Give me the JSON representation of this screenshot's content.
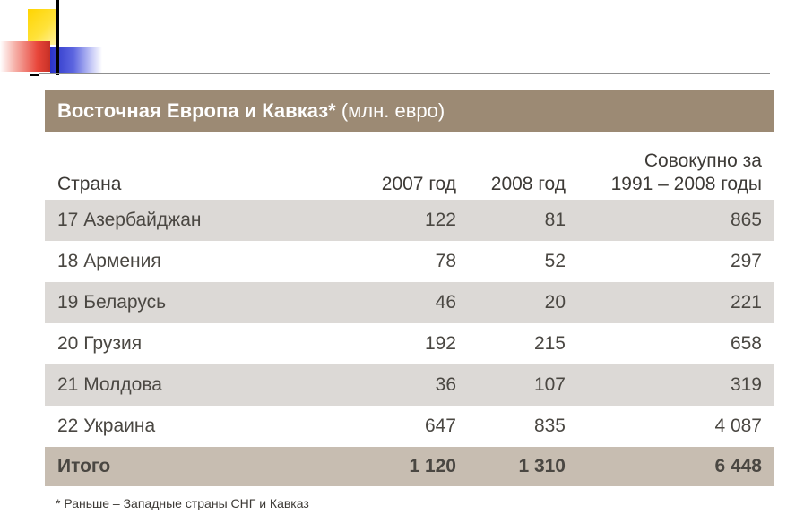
{
  "table": {
    "title": "Восточная Европа и Кавказ*",
    "unit": "(млн. евро)",
    "headers": {
      "country": "Страна",
      "y2007": "2007 год",
      "y2008": "2008 год",
      "total_line1": "Совокупно за",
      "total_line2": "1991 – 2008 годы"
    },
    "rows": [
      {
        "country": "17 Азербайджан",
        "y2007": "122",
        "y2008": "81",
        "total": "865"
      },
      {
        "country": "18 Армения",
        "y2007": "78",
        "y2008": "52",
        "total": "297"
      },
      {
        "country": "19 Беларусь",
        "y2007": "46",
        "y2008": "20",
        "total": "221"
      },
      {
        "country": "20 Грузия",
        "y2007": "192",
        "y2008": "215",
        "total": "658"
      },
      {
        "country": "21 Молдова",
        "y2007": "36",
        "y2008": "107",
        "total": "319"
      },
      {
        "country": "22 Украина",
        "y2007": "647",
        "y2008": "835",
        "total": "4 087"
      }
    ],
    "total": {
      "label": "Итого",
      "y2007": "1 120",
      "y2008": "1 310",
      "total": "6 448"
    },
    "footnote": "* Раньше – Западные страны СНГ и Кавказ"
  },
  "colors": {
    "title_bar": "#9c8a74",
    "row_shade": "#dcd9d6",
    "total_row": "#c7bdb1",
    "logo_yellow": "#ffd400",
    "logo_red": "#e8463a",
    "logo_blue": "#2a33c8"
  }
}
